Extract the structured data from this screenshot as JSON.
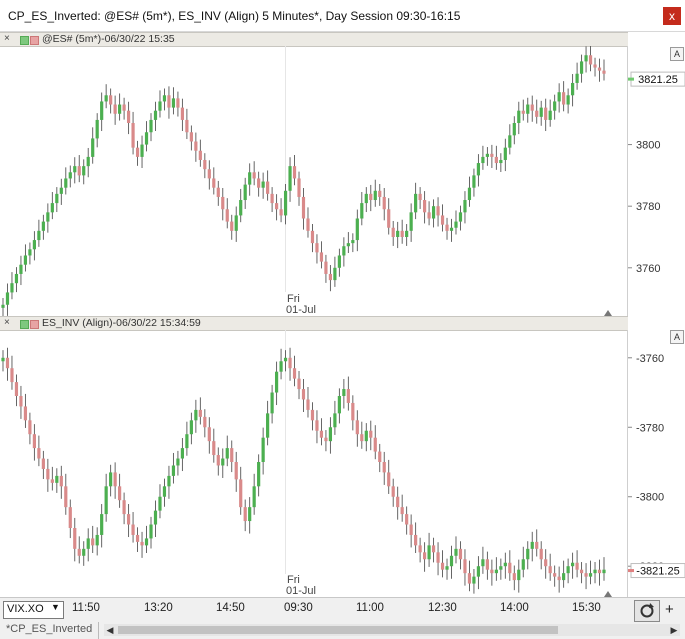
{
  "window": {
    "title": "CP_ES_Inverted: @ES# (5m*), ES_INV (Align) 5 Minutes*, Day Session 09:30-16:15",
    "close_label": "x"
  },
  "pane_top": {
    "close_label": "×",
    "label": "@ES# (5m*)-06/30/22 15:35",
    "axis_button": "A",
    "last_value": "3821.25",
    "axis_ticks": [
      "3800",
      "3780",
      "3760"
    ],
    "day_marker": [
      "Fri",
      "01-Jul"
    ],
    "colors": {
      "up": "#4caf50",
      "down": "#d98a8a",
      "marker": "#6fc96f"
    }
  },
  "pane_bottom": {
    "close_label": "×",
    "label": "ES_INV (Align)-06/30/22 15:34:59",
    "axis_button": "A",
    "last_value": "-3821.25",
    "axis_ticks": [
      "-3760",
      "-3780",
      "-3800",
      "-3820"
    ],
    "day_marker": [
      "Fri",
      "01-Jul"
    ],
    "colors": {
      "up": "#4caf50",
      "down": "#d98a8a",
      "marker": "#e08080"
    }
  },
  "time_axis": [
    "11:50",
    "13:20",
    "14:50",
    "09:30",
    "11:00",
    "12:30",
    "14:00",
    "15:30"
  ],
  "symbol_selector": {
    "value": "VIX.XO",
    "arrow": "▼"
  },
  "tab": {
    "label": "*CP_ES_Inverted"
  },
  "scroll": {
    "left": "◀",
    "right": "▶"
  },
  "plus_label": "+",
  "chart_data": [
    {
      "type": "candlestick",
      "title": "@ES# (5m*)-06/30/22 15:35",
      "y_ticks": [
        3800,
        3780,
        3760
      ],
      "ylim": [
        3745,
        3832
      ],
      "last": 3821.25,
      "x_ticks": [
        "11:50",
        "13:20",
        "14:50",
        "09:30",
        "11:00",
        "12:30",
        "14:00",
        "15:30"
      ],
      "closes": [
        3748,
        3752,
        3755,
        3758,
        3761,
        3764,
        3766,
        3769,
        3772,
        3775,
        3778,
        3781,
        3784,
        3786,
        3789,
        3791,
        3793,
        3790,
        3793,
        3796,
        3802,
        3808,
        3814,
        3816,
        3813,
        3810,
        3813,
        3811,
        3807,
        3799,
        3796,
        3800,
        3804,
        3808,
        3811,
        3814,
        3816,
        3812,
        3815,
        3812,
        3808,
        3804,
        3801,
        3798,
        3795,
        3792,
        3789,
        3786,
        3783,
        3779,
        3775,
        3772,
        3777,
        3782,
        3787,
        3791,
        3789,
        3786,
        3788,
        3784,
        3781,
        3779,
        3777,
        3785,
        3793,
        3789,
        3783,
        3776,
        3772,
        3768,
        3765,
        3762,
        3758,
        3756,
        3760,
        3764,
        3767,
        3768,
        3769,
        3776,
        3781,
        3784,
        3782,
        3785,
        3783,
        3779,
        3773,
        3770,
        3772,
        3770,
        3772,
        3778,
        3784,
        3782,
        3778,
        3776,
        3780,
        3777,
        3774,
        3772,
        3773,
        3775,
        3778,
        3782,
        3786,
        3790,
        3794,
        3796,
        3797,
        3796,
        3794,
        3795,
        3799,
        3803,
        3807,
        3811,
        3810,
        3813,
        3811,
        3809,
        3812,
        3808,
        3811,
        3814,
        3817,
        3813,
        3816,
        3820,
        3823,
        3827,
        3829,
        3826,
        3825,
        3824,
        3823
      ]
    },
    {
      "type": "candlestick",
      "title": "ES_INV (Align)-06/30/22 15:34:59",
      "y_ticks": [
        -3760,
        -3780,
        -3800,
        -3820
      ],
      "ylim": [
        -3828,
        -3752
      ],
      "last": -3821.25,
      "x_ticks": [
        "11:50",
        "13:20",
        "14:50",
        "09:30",
        "11:00",
        "12:30",
        "14:00",
        "15:30"
      ],
      "closes": [
        -3760,
        -3763,
        -3767,
        -3771,
        -3774,
        -3778,
        -3782,
        -3786,
        -3789,
        -3792,
        -3795,
        -3796,
        -3794,
        -3797,
        -3803,
        -3809,
        -3815,
        -3817,
        -3815,
        -3812,
        -3814,
        -3811,
        -3805,
        -3797,
        -3793,
        -3797,
        -3801,
        -3805,
        -3808,
        -3811,
        -3813,
        -3814,
        -3812,
        -3808,
        -3804,
        -3800,
        -3797,
        -3794,
        -3791,
        -3789,
        -3786,
        -3782,
        -3778,
        -3775,
        -3777,
        -3780,
        -3784,
        -3788,
        -3791,
        -3789,
        -3786,
        -3790,
        -3795,
        -3803,
        -3807,
        -3803,
        -3797,
        -3790,
        -3783,
        -3776,
        -3770,
        -3764,
        -3761,
        -3760,
        -3763,
        -3766,
        -3769,
        -3772,
        -3775,
        -3778,
        -3781,
        -3783,
        -3784,
        -3780,
        -3776,
        -3771,
        -3769,
        -3773,
        -3778,
        -3782,
        -3784,
        -3781,
        -3783,
        -3787,
        -3790,
        -3793,
        -3797,
        -3800,
        -3803,
        -3805,
        -3808,
        -3811,
        -3814,
        -3816,
        -3818,
        -3814,
        -3816,
        -3819,
        -3821,
        -3820,
        -3817,
        -3815,
        -3818,
        -3822,
        -3825,
        -3823,
        -3820,
        -3818,
        -3821,
        -3822,
        -3821,
        -3820,
        -3819,
        -3822,
        -3824,
        -3821,
        -3818,
        -3815,
        -3813,
        -3815,
        -3818,
        -3820,
        -3822,
        -3823,
        -3824,
        -3822,
        -3820,
        -3819,
        -3821,
        -3822,
        -3823,
        -3822,
        -3821,
        -3822,
        -3821
      ]
    }
  ]
}
